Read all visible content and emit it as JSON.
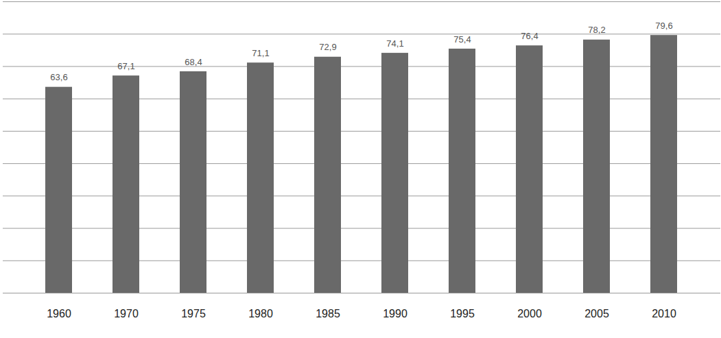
{
  "chart_data": {
    "type": "bar",
    "categories": [
      "1960",
      "1970",
      "1975",
      "1980",
      "1985",
      "1990",
      "1995",
      "2000",
      "2005",
      "2010"
    ],
    "values": [
      63.6,
      67.1,
      68.4,
      71.1,
      72.9,
      74.1,
      75.4,
      76.4,
      78.2,
      79.6
    ],
    "value_labels": [
      "63,6",
      "67,1",
      "68,4",
      "71,1",
      "72,9",
      "74,1",
      "75,4",
      "76,4",
      "78,2",
      "79,6"
    ],
    "color": "#696969",
    "ylim": [
      0,
      90
    ],
    "yticks": [
      0,
      10,
      20,
      30,
      40,
      50,
      60,
      70,
      80,
      90
    ],
    "grid": true,
    "data_labels": true,
    "tick_labels": "x"
  }
}
